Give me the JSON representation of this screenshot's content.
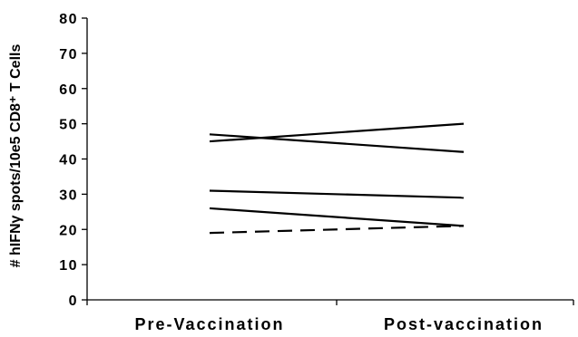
{
  "chart_data": {
    "type": "line",
    "categories": [
      "Pre-Vaccination",
      "Post-vaccination"
    ],
    "ylabel": "# hIFNγ spots/10e5 CD8⁺ T Cells",
    "ylim": [
      0,
      80
    ],
    "yticks": [
      0,
      10,
      20,
      30,
      40,
      50,
      60,
      70,
      80
    ],
    "grid": false,
    "legend": "none",
    "series": [
      {
        "values": [
          47,
          42
        ],
        "style": "solid"
      },
      {
        "values": [
          45,
          50
        ],
        "style": "solid"
      },
      {
        "values": [
          31,
          29
        ],
        "style": "solid"
      },
      {
        "values": [
          26,
          21
        ],
        "style": "solid"
      },
      {
        "values": [
          19,
          21
        ],
        "style": "dashed"
      }
    ]
  }
}
